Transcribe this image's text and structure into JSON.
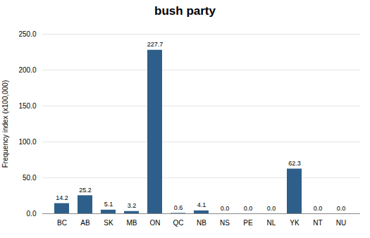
{
  "chart_data": {
    "type": "bar",
    "title": "bush party",
    "categories": [
      "BC",
      "AB",
      "SK",
      "MB",
      "ON",
      "QC",
      "NB",
      "NS",
      "PE",
      "NL",
      "YK",
      "NT",
      "NU"
    ],
    "values": [
      14.2,
      25.2,
      5.1,
      3.2,
      227.7,
      0.6,
      4.1,
      0.0,
      0.0,
      0.0,
      62.3,
      0.0,
      0.0
    ],
    "value_labels": [
      "14.2",
      "25.2",
      "5.1",
      "3.2",
      "227.7",
      "0.6",
      "4.1",
      "0.0",
      "0.0",
      "0.0",
      "62.3",
      "0.0",
      "0.0"
    ],
    "data_labels": true,
    "color": "#2E5F8A",
    "ylabel": "Frequency index (x100,000)",
    "ylim": [
      0,
      250.0
    ],
    "yticks": [
      {
        "value": 0,
        "label": "0.0"
      },
      {
        "value": 50,
        "label": "50.0"
      },
      {
        "value": 100,
        "label": "100.0"
      },
      {
        "value": 150,
        "label": "150.0"
      },
      {
        "value": 200,
        "label": "200.0"
      },
      {
        "value": 250,
        "label": "250.0"
      }
    ],
    "grid": true
  }
}
